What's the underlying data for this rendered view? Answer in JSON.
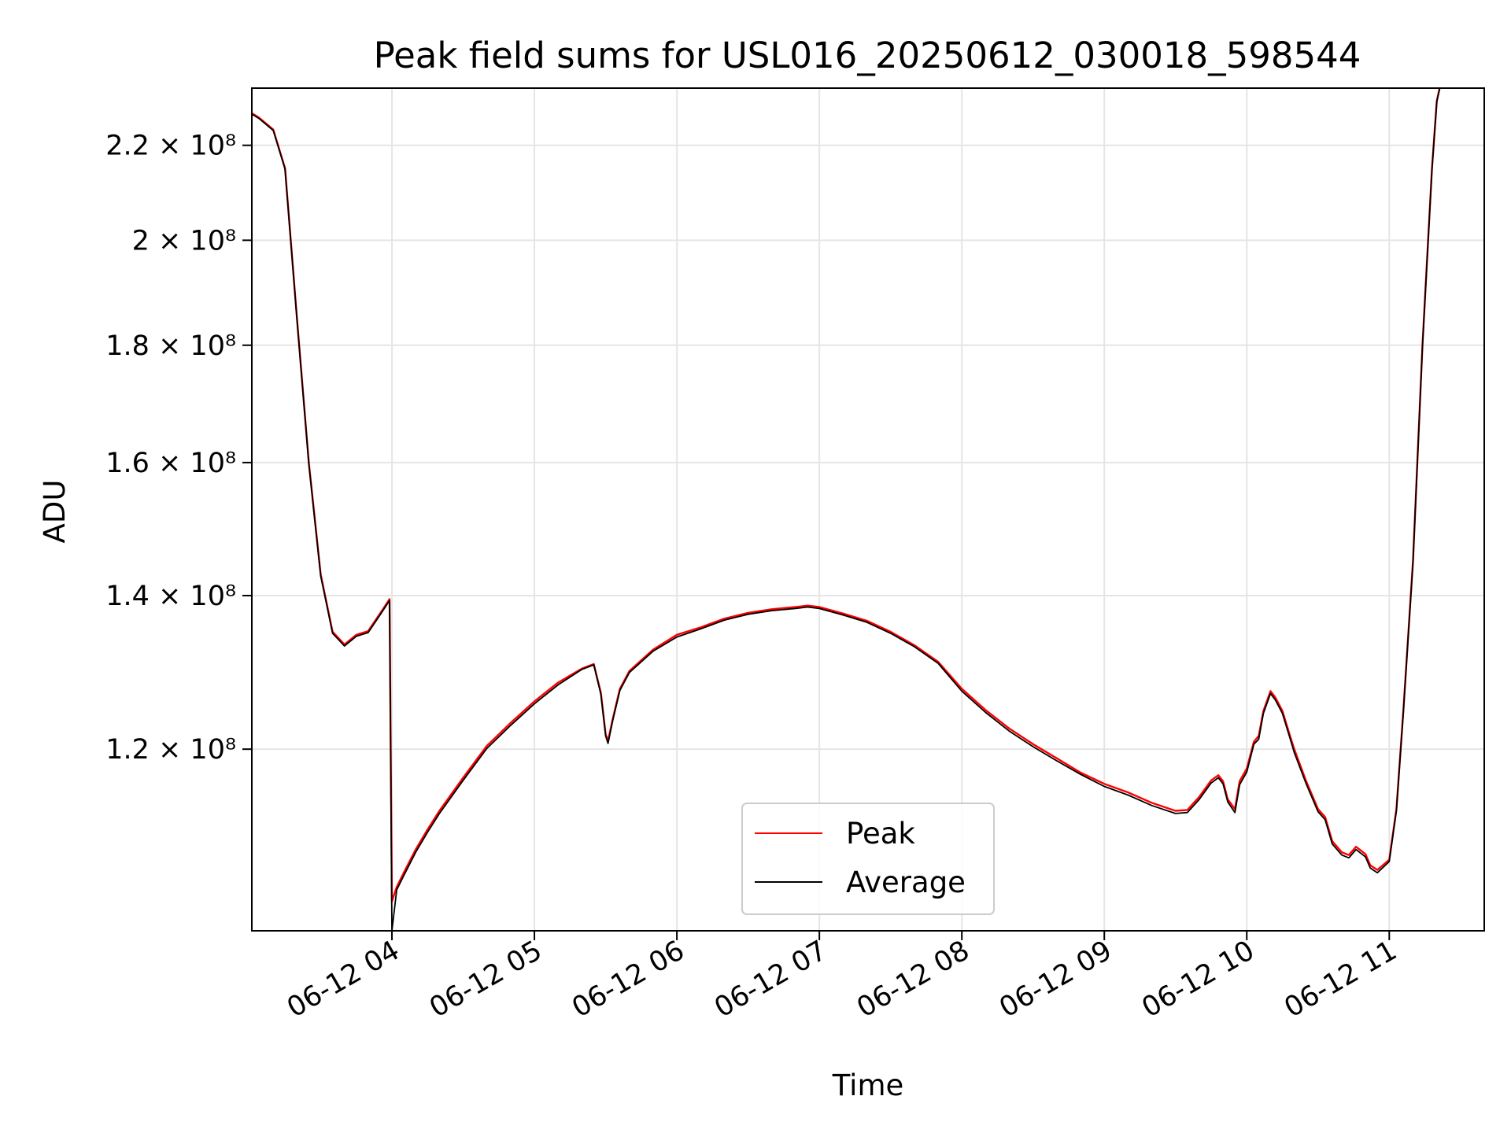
{
  "chart_data": {
    "type": "line",
    "title": "Peak field sums for USL016_20250612_030018_598544",
    "xlabel": "Time",
    "ylabel": "ADU",
    "y_scale": "log",
    "grid": true,
    "legend_position": "lower center",
    "x_range": [
      "2025-06-12 03:01",
      "2025-06-12 11:40"
    ],
    "y_range": [
      100000000.0,
      233000000.0
    ],
    "x_ticks": [
      {
        "value": "2025-06-12 04:00",
        "label": "06-12 04"
      },
      {
        "value": "2025-06-12 05:00",
        "label": "06-12 05"
      },
      {
        "value": "2025-06-12 06:00",
        "label": "06-12 06"
      },
      {
        "value": "2025-06-12 07:00",
        "label": "06-12 07"
      },
      {
        "value": "2025-06-12 08:00",
        "label": "06-12 08"
      },
      {
        "value": "2025-06-12 09:00",
        "label": "06-12 09"
      },
      {
        "value": "2025-06-12 10:00",
        "label": "06-12 10"
      },
      {
        "value": "2025-06-12 11:00",
        "label": "06-12 11"
      }
    ],
    "y_ticks": [
      {
        "value": 120000000,
        "label": "1.2 × 10⁸"
      },
      {
        "value": 140000000,
        "label": "1.4 × 10⁸"
      },
      {
        "value": 160000000,
        "label": "1.6 × 10⁸"
      },
      {
        "value": 180000000,
        "label": "1.8 × 10⁸"
      },
      {
        "value": 200000000,
        "label": "2 × 10⁸"
      },
      {
        "value": 220000000,
        "label": "2.2 × 10⁸"
      }
    ],
    "x": [
      "03:01",
      "03:04",
      "03:10",
      "03:15",
      "03:20",
      "03:25",
      "03:30",
      "03:35",
      "03:40",
      "03:45",
      "03:50",
      "03:55",
      "03:59",
      "04:00",
      "04:02",
      "04:05",
      "04:10",
      "04:15",
      "04:20",
      "04:30",
      "04:40",
      "04:50",
      "05:00",
      "05:10",
      "05:20",
      "05:25",
      "05:28",
      "05:30",
      "05:31",
      "05:33",
      "05:36",
      "05:40",
      "05:50",
      "06:00",
      "06:10",
      "06:20",
      "06:30",
      "06:40",
      "06:50",
      "06:55",
      "07:00",
      "07:10",
      "07:20",
      "07:30",
      "07:40",
      "07:50",
      "08:00",
      "08:10",
      "08:20",
      "08:30",
      "08:40",
      "08:50",
      "09:00",
      "09:10",
      "09:20",
      "09:30",
      "09:35",
      "09:40",
      "09:45",
      "09:48",
      "09:50",
      "09:52",
      "09:55",
      "09:57",
      "10:00",
      "10:03",
      "10:05",
      "10:07",
      "10:10",
      "10:12",
      "10:15",
      "10:18",
      "10:20",
      "10:25",
      "10:30",
      "10:33",
      "10:36",
      "10:40",
      "10:43",
      "10:46",
      "10:50",
      "10:52",
      "10:55",
      "11:00",
      "11:03",
      "11:06",
      "11:10",
      "11:14",
      "11:18",
      "11:20",
      "11:22"
    ],
    "series": [
      {
        "name": "Peak",
        "color": "#ff0000",
        "values": [
          227.2,
          226.2,
          223.5,
          215,
          185,
          160,
          143,
          135,
          133.3,
          134.6,
          135.1,
          137.5,
          139.5,
          103,
          104.5,
          106,
          108.5,
          110.7,
          112.8,
          116.6,
          120.4,
          123.2,
          125.9,
          128.3,
          130.1,
          130.7,
          127,
          121.8,
          121.0,
          123.7,
          127.5,
          129.8,
          132.6,
          134.6,
          135.6,
          136.8,
          137.6,
          138.1,
          138.4,
          138.6,
          138.4,
          137.5,
          136.5,
          135,
          133.2,
          131,
          127.5,
          124.8,
          122.5,
          120.6,
          118.9,
          117.2,
          115.9,
          114.9,
          113.7,
          112.8,
          112.9,
          114.4,
          116.3,
          116.9,
          116.2,
          114.1,
          113.0,
          116.2,
          117.7,
          120.9,
          121.6,
          124.7,
          127.2,
          126.4,
          124.7,
          121.8,
          120.0,
          116.2,
          113.0,
          112.1,
          109.4,
          108.2,
          107.9,
          108.8,
          108.0,
          106.8,
          106.3,
          107.4,
          113.0,
          125.0,
          145,
          180,
          215,
          230,
          235
        ]
      },
      {
        "name": "Average",
        "color": "#000000",
        "values": [
          227.0,
          226.0,
          223.3,
          214.8,
          184.8,
          159.8,
          142.8,
          134.8,
          133.1,
          134.4,
          134.9,
          137.3,
          139.3,
          100,
          104.2,
          105.7,
          108.2,
          110.4,
          112.5,
          116.3,
          120.1,
          122.9,
          125.6,
          128.0,
          130.0,
          130.6,
          126.8,
          121.6,
          120.7,
          123.5,
          127.3,
          129.6,
          132.4,
          134.3,
          135.4,
          136.6,
          137.4,
          137.9,
          138.2,
          138.4,
          138.2,
          137.3,
          136.3,
          134.8,
          133.0,
          130.8,
          127.2,
          124.5,
          122.2,
          120.3,
          118.6,
          117.0,
          115.6,
          114.6,
          113.4,
          112.5,
          112.6,
          114.1,
          116.0,
          116.6,
          115.9,
          113.8,
          112.6,
          115.8,
          117.3,
          120.6,
          121.2,
          124.4,
          126.9,
          126.1,
          124.4,
          121.5,
          119.6,
          115.9,
          112.7,
          111.8,
          109.1,
          107.9,
          107.6,
          108.5,
          107.7,
          106.5,
          106.0,
          107.2,
          112.8,
          124.8,
          144.8,
          179.8,
          214.8,
          229.8,
          235
        ]
      }
    ],
    "value_unit_multiplier": 1000000
  }
}
